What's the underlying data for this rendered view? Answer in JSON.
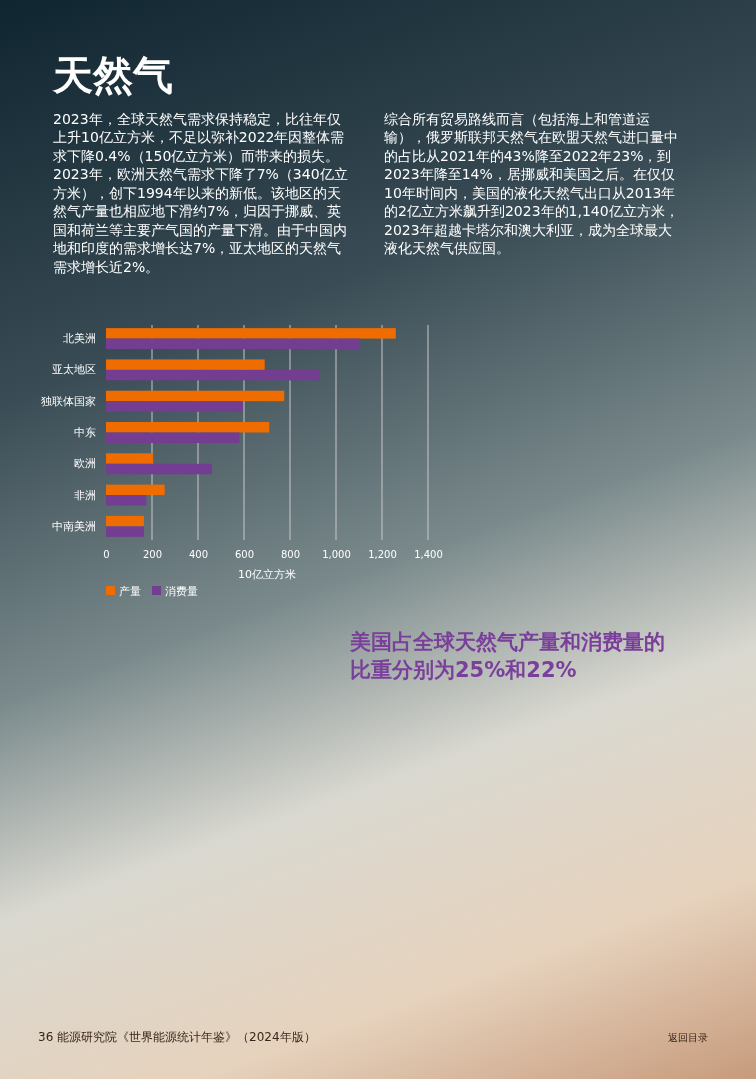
{
  "chart_data": {
    "type": "bar",
    "orientation": "horizontal",
    "title": "天然气",
    "annotations": [
      "2023年，全球天然气需求保持稳定，比往年仅上升10亿立方米，不足以弥补2022年因整体需求下降0.4%（150亿立方米）而带来的损失。2023年，欧洲天然气需求下降了7%（340亿立方米），创下1994年以来的新低。该地区的天然气产量也相应地下滑约7%，归因于挪威、英国和荷兰等主要产气国的产量下滑。由于中国内地和印度的需求增长达7%，亚太地区的天然气需求增长近2%。",
      "综合所有贸易路线而言（包括海上和管道运输），俄罗斯联邦天然气在欧盟天然气进口量中的占比从2021年的43%降至2022年23%，到2023年降至14%，居挪威和美国之后。在仅仅10年时间内，美国的液化天然气出口从2013年的2亿立方米飙升到2023年的1,140亿立方米，2023年超越卡塔尔和澳大利亚，成为全球最大液化天然气供应国。",
      "美国占全球天然气产量和消费量的比重分别为25%和22%",
      "36  能源研究院《世界能源统计年鉴》（2024年版）",
      "返回目录"
    ],
    "categories": [
      "北美洲",
      "亚太地区",
      "独联体国家",
      "中东",
      "欧洲",
      "非洲",
      "中南美洲"
    ],
    "series": [
      {
        "name": "产量",
        "color": "#ef6c00",
        "values": [
          1260,
          690,
          775,
          710,
          205,
          255,
          165
        ]
      },
      {
        "name": "消费量",
        "color": "#733d91",
        "values": [
          1105,
          930,
          595,
          580,
          460,
          175,
          165
        ]
      }
    ],
    "xlabel": "10亿立方米",
    "xlim": [
      0,
      1400
    ],
    "xticks": [
      0,
      200,
      400,
      600,
      800,
      {
        "value": 1000,
        "label": "1,000"
      },
      {
        "value": 1200,
        "label": "1,200"
      },
      {
        "value": 1400,
        "label": "1,400"
      }
    ],
    "grid": "x",
    "legend": "bottom"
  }
}
